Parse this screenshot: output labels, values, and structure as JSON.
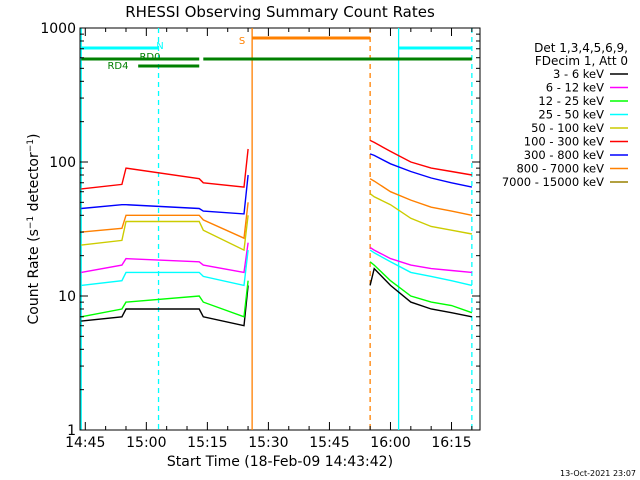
{
  "chart_data": {
    "type": "line",
    "title": "RHESSI Observing Summary Count Rates",
    "xlabel": "Start Time (18-Feb-09 14:43:42)",
    "ylabel": "Count Rate (s^-1 detector^-1)",
    "ylabel_parts": {
      "main": "Count Rate (s",
      "sup1": "−1",
      "mid": " detector",
      "sup2": "−1",
      "end": ")"
    },
    "y_scale": "log",
    "ylim": [
      1,
      1000
    ],
    "xlim": [
      "14:43:42",
      "16:22:00"
    ],
    "x_ticks": [
      "14:45",
      "15:00",
      "15:15",
      "15:30",
      "15:45",
      "16:00",
      "16:15"
    ],
    "y_ticks": [
      "1",
      "10",
      "100",
      "1000"
    ],
    "footer_date": "13-Oct-2021 23:07",
    "legend": {
      "header_line1": "Det 1,3,4,5,6,9,",
      "header_line2": "FDecim 1, Att 0",
      "placement": "right"
    },
    "series": [
      {
        "name": "3 - 6 keV",
        "color": "#000000"
      },
      {
        "name": "6 - 12 keV",
        "color": "#ff00ff"
      },
      {
        "name": "12 - 25 keV",
        "color": "#00ff00"
      },
      {
        "name": "25 - 50 keV",
        "color": "#00ffff"
      },
      {
        "name": "50 - 100 keV",
        "color": "#cccc00"
      },
      {
        "name": "100 - 300 keV",
        "color": "#ff0000"
      },
      {
        "name": "300 - 800 keV",
        "color": "#0000ff"
      },
      {
        "name": "800 - 7000 keV",
        "color": "#ff8000"
      },
      {
        "name": "7000 - 15000 keV",
        "color": "#998000"
      }
    ],
    "segments": [
      {
        "x": [
          "14:44",
          "14:54",
          "14:55",
          "15:13",
          "15:14",
          "15:24",
          "15:25"
        ],
        "values": [
          [
            6.5,
            7,
            8,
            8,
            7,
            6,
            12
          ],
          [
            15,
            17,
            19,
            18,
            17,
            15,
            25
          ],
          [
            7,
            8,
            9,
            10,
            9,
            7,
            13
          ],
          [
            12,
            13,
            15,
            15,
            14,
            12,
            22
          ],
          [
            24,
            26,
            36,
            36,
            31,
            22,
            40
          ],
          [
            63,
            68,
            90,
            75,
            70,
            65,
            125
          ],
          [
            45,
            48,
            48,
            45,
            43,
            41,
            80
          ],
          [
            30,
            32,
            40,
            40,
            37,
            27,
            50
          ],
          [
            null,
            null,
            null,
            null,
            null,
            null,
            null
          ]
        ]
      },
      {
        "x": [
          "15:55",
          "15:56",
          "16:00",
          "16:05",
          "16:10",
          "16:15",
          "16:20"
        ],
        "values": [
          [
            12,
            16,
            12,
            9,
            8,
            7.5,
            7
          ],
          [
            23,
            22,
            19,
            17,
            16,
            15.5,
            15
          ],
          [
            18,
            17,
            13,
            10,
            9,
            8.5,
            7.5
          ],
          [
            22,
            21,
            18,
            15,
            14,
            13,
            12
          ],
          [
            58,
            55,
            48,
            38,
            33,
            31,
            29
          ],
          [
            145,
            140,
            120,
            100,
            90,
            85,
            80
          ],
          [
            115,
            112,
            97,
            85,
            76,
            70,
            65
          ],
          [
            75,
            72,
            60,
            52,
            46,
            43,
            40
          ],
          [
            null,
            null,
            null,
            null,
            null,
            null,
            null
          ]
        ]
      }
    ],
    "x_vlines": [
      {
        "x": "14:44",
        "color": "#00ffff",
        "dashed": false
      },
      {
        "x": "15:03",
        "color": "#00ffff",
        "dashed": true
      },
      {
        "x": "15:26",
        "color": "#ff8000",
        "dashed": false
      },
      {
        "x": "15:55",
        "color": "#ff8000",
        "dashed": true
      },
      {
        "x": "16:02",
        "color": "#00ffff",
        "dashed": false
      },
      {
        "x": "16:20",
        "color": "#00ffff",
        "dashed": true
      }
    ],
    "flags": [
      {
        "label": "N",
        "color": "#00ffff",
        "segments": [
          [
            "14:44",
            "15:03"
          ],
          [
            "16:02",
            "16:20"
          ]
        ]
      },
      {
        "label": "S",
        "color": "#ff8000",
        "segments": [
          [
            "15:26",
            "15:55"
          ]
        ]
      },
      {
        "label": "RD0",
        "color": "#008000",
        "segments": [
          [
            "14:44",
            "15:13"
          ],
          [
            "15:14",
            "16:20"
          ]
        ]
      },
      {
        "label": "RD4",
        "color": "#008000",
        "segments": [
          [
            "14:58",
            "15:13"
          ]
        ]
      }
    ]
  }
}
